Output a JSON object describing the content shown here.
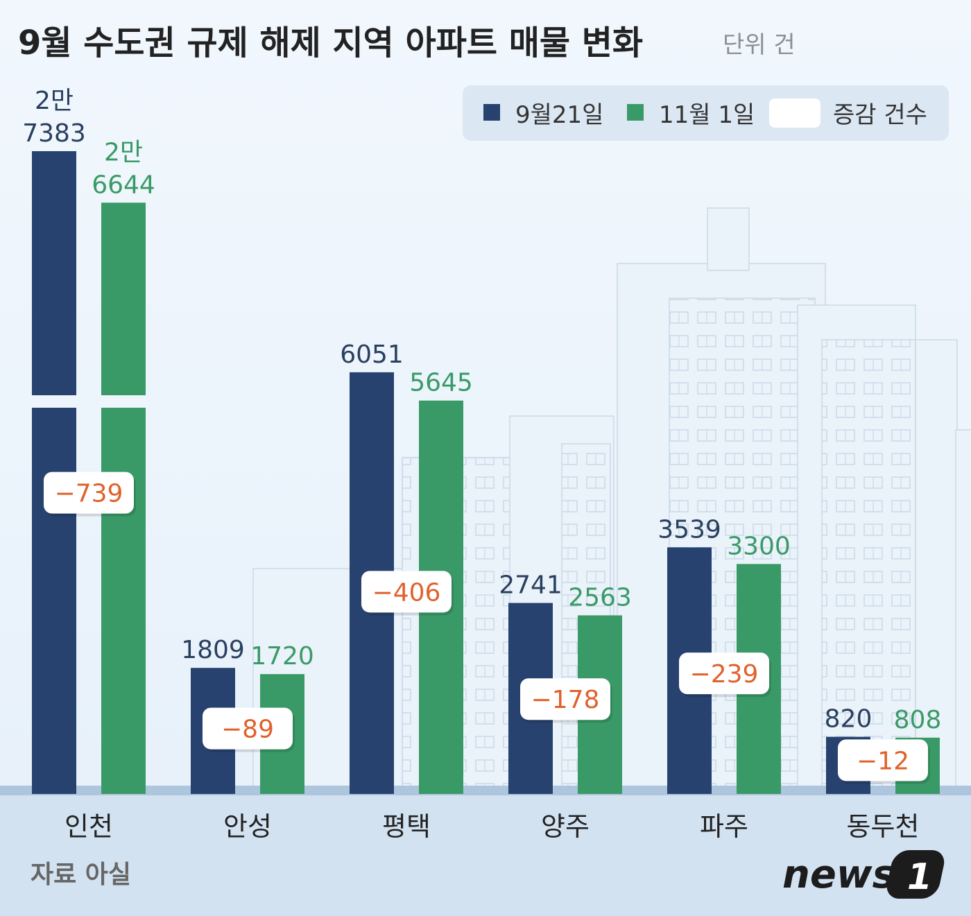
{
  "chart_data": {
    "type": "bar",
    "title": "9월 수도권 규제 해제 지역 아파트 매물 변화",
    "unit": "단위 건",
    "categories": [
      "인천",
      "안성",
      "평택",
      "양주",
      "파주",
      "동두천"
    ],
    "series": [
      {
        "name": "9월21일",
        "color": "#27426f",
        "values": [
          27383,
          1809,
          6051,
          2741,
          3539,
          820
        ],
        "value_labels": [
          "2만\n7383",
          "1809",
          "6051",
          "2741",
          "3539",
          "820"
        ]
      },
      {
        "name": "11월 1일",
        "color": "#3a9a67",
        "values": [
          26644,
          1720,
          5645,
          2563,
          3300,
          808
        ],
        "value_labels": [
          "2만\n6644",
          "1720",
          "5645",
          "2563",
          "3300",
          "808"
        ]
      },
      {
        "name": "증감 건수",
        "color": "#ffffff",
        "text_color": "#e0612b",
        "style": "label-box",
        "values": [
          -739,
          -89,
          -406,
          -178,
          -239,
          -12
        ],
        "value_labels": [
          "−739",
          "−89",
          "−406",
          "−178",
          "−239",
          "−12"
        ]
      }
    ],
    "source": "자료 아실",
    "logo": {
      "text": "news",
      "badge": "1"
    }
  }
}
